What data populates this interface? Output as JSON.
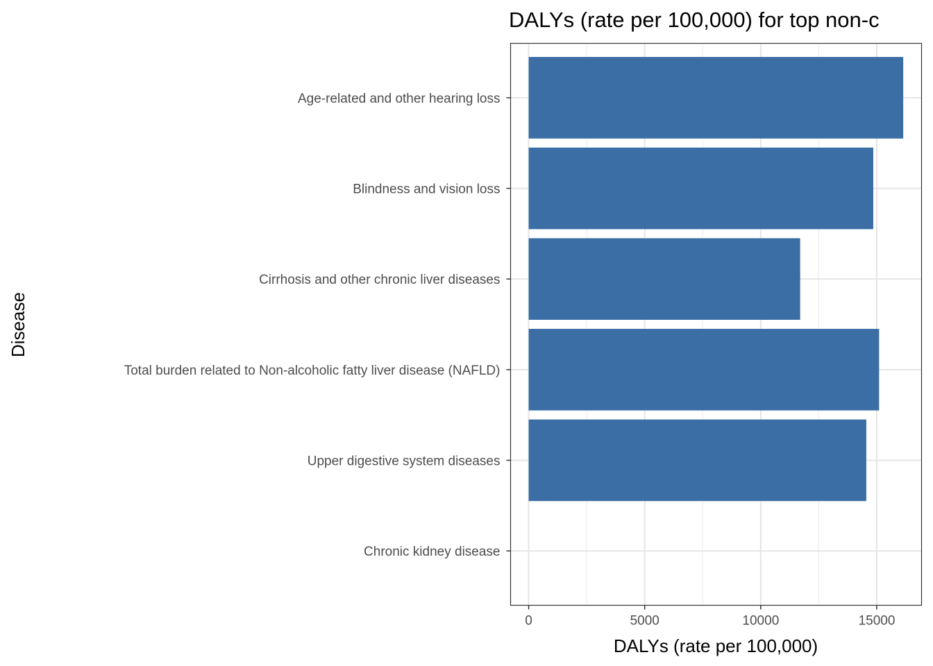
{
  "chart_data": {
    "type": "bar",
    "orientation": "horizontal",
    "title": "DALYs (rate per 100,000) for top non-c",
    "xlabel": "DALYs (rate per 100,000)",
    "ylabel": "Disease",
    "categories": [
      "Age-related and other hearing loss",
      "Blindness and vision loss",
      "Cirrhosis and other chronic liver diseases",
      "Total burden related to Non-alcoholic fatty liver disease (NAFLD)",
      "Upper digestive system diseases",
      "Chronic kidney disease"
    ],
    "values": [
      16140,
      14850,
      11700,
      15100,
      14550,
      null
    ],
    "xticks": [
      0,
      5000,
      10000,
      15000
    ],
    "xtick_labels": [
      "0",
      "5000",
      "10000",
      "15000"
    ],
    "xlim": [
      -780,
      16930
    ],
    "grid": true,
    "bar_color": "#3A6EA5"
  }
}
